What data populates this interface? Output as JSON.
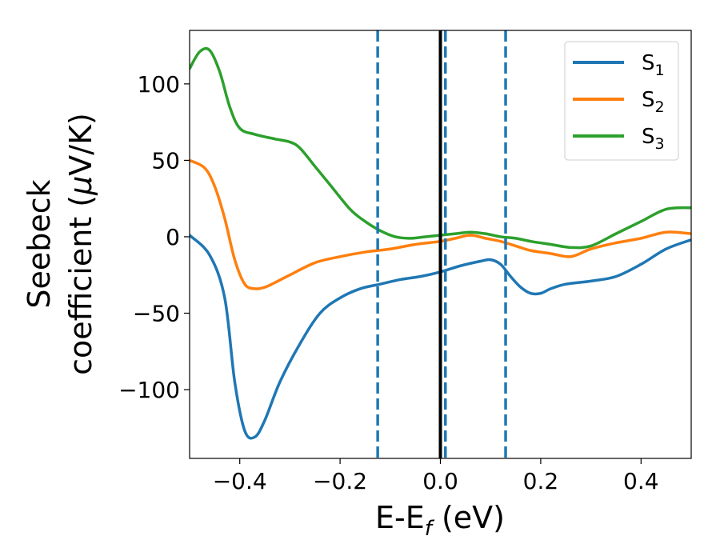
{
  "chart_data": {
    "type": "line",
    "title": "",
    "xlabel": "E-E",
    "xlabel_sub": "f",
    "xlabel_unit": " (eV)",
    "ylabel_line1": "Seebeck",
    "ylabel_line2_pre": "coefficient  (",
    "ylabel_mu": "μ",
    "ylabel_line2_post": "V/K)",
    "xlim": [
      -0.5,
      0.5
    ],
    "ylim": [
      -145,
      135
    ],
    "xticks": [
      -0.4,
      -0.2,
      0.0,
      0.2,
      0.4
    ],
    "xtick_labels": [
      "−0.4",
      "−0.2",
      "0.0",
      "0.2",
      "0.4"
    ],
    "yticks": [
      -100,
      -50,
      0,
      50,
      100
    ],
    "ytick_labels": [
      "−100",
      "−50",
      "0",
      "50",
      "100"
    ],
    "legend_position": "top-right",
    "vertical_lines": [
      {
        "x": 0.0,
        "style": "solid",
        "color": "#000000"
      },
      {
        "x": -0.125,
        "style": "dashed",
        "color": "#1f77b4"
      },
      {
        "x": 0.01,
        "style": "dashed",
        "color": "#1f77b4"
      },
      {
        "x": 0.13,
        "style": "dashed",
        "color": "#1f77b4"
      }
    ],
    "series": [
      {
        "name": "S",
        "sub": "1",
        "color": "#1f77b4",
        "x": [
          -0.5,
          -0.46,
          -0.43,
          -0.41,
          -0.39,
          -0.37,
          -0.35,
          -0.32,
          -0.28,
          -0.24,
          -0.2,
          -0.16,
          -0.12,
          -0.08,
          -0.04,
          0.0,
          0.04,
          0.08,
          0.1,
          0.12,
          0.14,
          0.16,
          0.18,
          0.2,
          0.22,
          0.25,
          0.3,
          0.35,
          0.4,
          0.45,
          0.5
        ],
        "y": [
          1,
          -12,
          -40,
          -95,
          -127,
          -131,
          -120,
          -95,
          -70,
          -50,
          -40,
          -34,
          -31,
          -28,
          -26,
          -23,
          -19,
          -16,
          -15,
          -18,
          -26,
          -33,
          -37,
          -37,
          -34,
          -31,
          -29,
          -26,
          -18,
          -8,
          -2
        ]
      },
      {
        "name": "S",
        "sub": "2",
        "color": "#ff7f0e",
        "x": [
          -0.5,
          -0.47,
          -0.45,
          -0.43,
          -0.41,
          -0.39,
          -0.37,
          -0.35,
          -0.33,
          -0.3,
          -0.25,
          -0.2,
          -0.15,
          -0.1,
          -0.05,
          0.0,
          0.03,
          0.06,
          0.09,
          0.12,
          0.15,
          0.18,
          0.22,
          0.26,
          0.3,
          0.35,
          0.4,
          0.45,
          0.5
        ],
        "y": [
          50,
          45,
          33,
          12,
          -15,
          -31,
          -34,
          -33,
          -30,
          -25,
          -17,
          -13,
          -10,
          -8,
          -5,
          -3,
          -1,
          1,
          -1,
          -3,
          -6,
          -9,
          -11,
          -13,
          -8,
          -4,
          -1,
          3,
          2
        ]
      },
      {
        "name": "S",
        "sub": "3",
        "color": "#2ca02c",
        "x": [
          -0.5,
          -0.48,
          -0.46,
          -0.44,
          -0.42,
          -0.4,
          -0.37,
          -0.33,
          -0.3,
          -0.28,
          -0.25,
          -0.22,
          -0.18,
          -0.15,
          -0.12,
          -0.09,
          -0.06,
          -0.03,
          0.0,
          0.03,
          0.06,
          0.09,
          0.12,
          0.15,
          0.18,
          0.22,
          0.26,
          0.3,
          0.35,
          0.4,
          0.45,
          0.5
        ],
        "y": [
          110,
          121,
          122,
          108,
          85,
          71,
          67,
          64,
          62,
          58,
          46,
          34,
          18,
          10,
          4,
          0,
          -1,
          0,
          1,
          2,
          3,
          2,
          0,
          -1,
          -3,
          -5,
          -7,
          -6,
          2,
          10,
          18,
          19
        ]
      }
    ]
  }
}
